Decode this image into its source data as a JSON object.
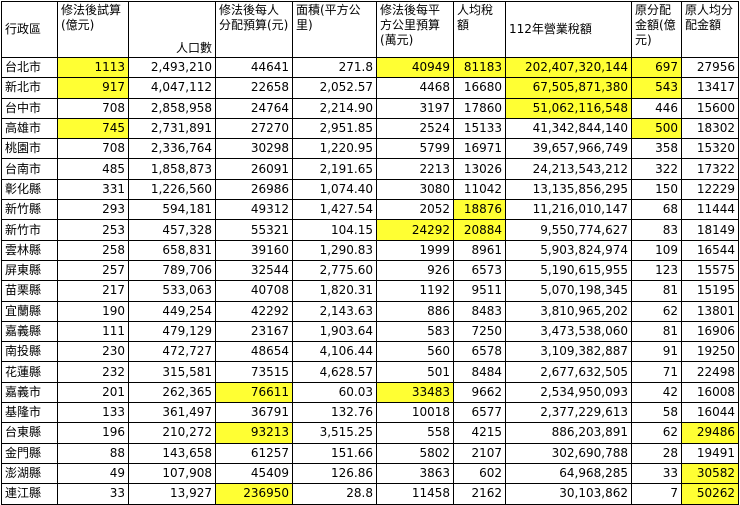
{
  "headers": [
    "行政區",
    "修法後試算(億元)",
    "人口數",
    "修法後每人分配預算(元)",
    "面積(平方公里)",
    "修法後每平方公里預算(萬元)",
    "人均稅額",
    "112年營業稅額",
    "原分配金額(億元)",
    "原人均分配金額"
  ],
  "highlight_color": "#ffff33",
  "rows": [
    {
      "cells": [
        "台北市",
        "1113",
        "2,493,210",
        "44641",
        "271.8",
        "40949",
        "81183",
        "202,407,320,144",
        "697",
        "27956"
      ],
      "hl": [
        1,
        5,
        6,
        7,
        8
      ]
    },
    {
      "cells": [
        "新北市",
        "917",
        "4,047,112",
        "22658",
        "2,052.57",
        "4468",
        "16680",
        "67,505,871,380",
        "543",
        "13417"
      ],
      "hl": [
        1,
        7,
        8
      ]
    },
    {
      "cells": [
        "台中市",
        "708",
        "2,858,958",
        "24764",
        "2,214.90",
        "3197",
        "17860",
        "51,062,116,548",
        "446",
        "15600"
      ],
      "hl": [
        7
      ]
    },
    {
      "cells": [
        "高雄市",
        "745",
        "2,731,891",
        "27270",
        "2,951.85",
        "2524",
        "15133",
        "41,342,844,140",
        "500",
        "18302"
      ],
      "hl": [
        1,
        8
      ]
    },
    {
      "cells": [
        "桃園市",
        "708",
        "2,336,764",
        "30298",
        "1,220.95",
        "5799",
        "16971",
        "39,657,966,749",
        "358",
        "15320"
      ],
      "hl": []
    },
    {
      "cells": [
        "台南市",
        "485",
        "1,858,873",
        "26091",
        "2,191.65",
        "2213",
        "13026",
        "24,213,543,212",
        "322",
        "17322"
      ],
      "hl": []
    },
    {
      "cells": [
        "彰化縣",
        "331",
        "1,226,560",
        "26986",
        "1,074.40",
        "3080",
        "11042",
        "13,135,856,295",
        "150",
        "12229"
      ],
      "hl": []
    },
    {
      "cells": [
        "新竹縣",
        "293",
        "594,181",
        "49312",
        "1,427.54",
        "2052",
        "18876",
        "11,216,010,147",
        "68",
        "11444"
      ],
      "hl": [
        6
      ]
    },
    {
      "cells": [
        "新竹市",
        "253",
        "457,328",
        "55321",
        "104.15",
        "24292",
        "20884",
        "9,550,774,627",
        "83",
        "18149"
      ],
      "hl": [
        5,
        6
      ]
    },
    {
      "cells": [
        "雲林縣",
        "258",
        "658,831",
        "39160",
        "1,290.83",
        "1999",
        "8961",
        "5,903,824,974",
        "109",
        "16544"
      ],
      "hl": []
    },
    {
      "cells": [
        "屏東縣",
        "257",
        "789,706",
        "32544",
        "2,775.60",
        "926",
        "6573",
        "5,190,615,955",
        "123",
        "15575"
      ],
      "hl": []
    },
    {
      "cells": [
        "苗栗縣",
        "217",
        "533,063",
        "40708",
        "1,820.31",
        "1192",
        "9511",
        "5,070,198,345",
        "81",
        "15195"
      ],
      "hl": []
    },
    {
      "cells": [
        "宜蘭縣",
        "190",
        "449,254",
        "42292",
        "2,143.63",
        "886",
        "8483",
        "3,810,965,202",
        "62",
        "13801"
      ],
      "hl": []
    },
    {
      "cells": [
        "嘉義縣",
        "111",
        "479,129",
        "23167",
        "1,903.64",
        "583",
        "7250",
        "3,473,538,060",
        "81",
        "16906"
      ],
      "hl": []
    },
    {
      "cells": [
        "南投縣",
        "230",
        "472,727",
        "48654",
        "4,106.44",
        "560",
        "6578",
        "3,109,382,887",
        "91",
        "19250"
      ],
      "hl": []
    },
    {
      "cells": [
        "花蓮縣",
        "232",
        "315,581",
        "73515",
        "4,628.57",
        "501",
        "8484",
        "2,677,632,505",
        "71",
        "22498"
      ],
      "hl": []
    },
    {
      "cells": [
        "嘉義市",
        "201",
        "262,365",
        "76611",
        "60.03",
        "33483",
        "9662",
        "2,534,950,093",
        "42",
        "16008"
      ],
      "hl": [
        3,
        5
      ]
    },
    {
      "cells": [
        "基隆市",
        "133",
        "361,497",
        "36791",
        "132.76",
        "10018",
        "6577",
        "2,377,229,613",
        "58",
        "16044"
      ],
      "hl": []
    },
    {
      "cells": [
        "台東縣",
        "196",
        "210,272",
        "93213",
        "3,515.25",
        "558",
        "4215",
        "886,203,891",
        "62",
        "29486"
      ],
      "hl": [
        3,
        9
      ]
    },
    {
      "cells": [
        "金門縣",
        "88",
        "143,658",
        "61257",
        "151.66",
        "5802",
        "2107",
        "302,690,788",
        "28",
        "19491"
      ],
      "hl": []
    },
    {
      "cells": [
        "澎湖縣",
        "49",
        "107,908",
        "45409",
        "126.86",
        "3863",
        "602",
        "64,968,285",
        "33",
        "30582"
      ],
      "hl": [
        9
      ]
    },
    {
      "cells": [
        "連江縣",
        "33",
        "13,927",
        "236950",
        "28.8",
        "11458",
        "2162",
        "30,103,862",
        "7",
        "50262"
      ],
      "hl": [
        3,
        9
      ]
    }
  ]
}
